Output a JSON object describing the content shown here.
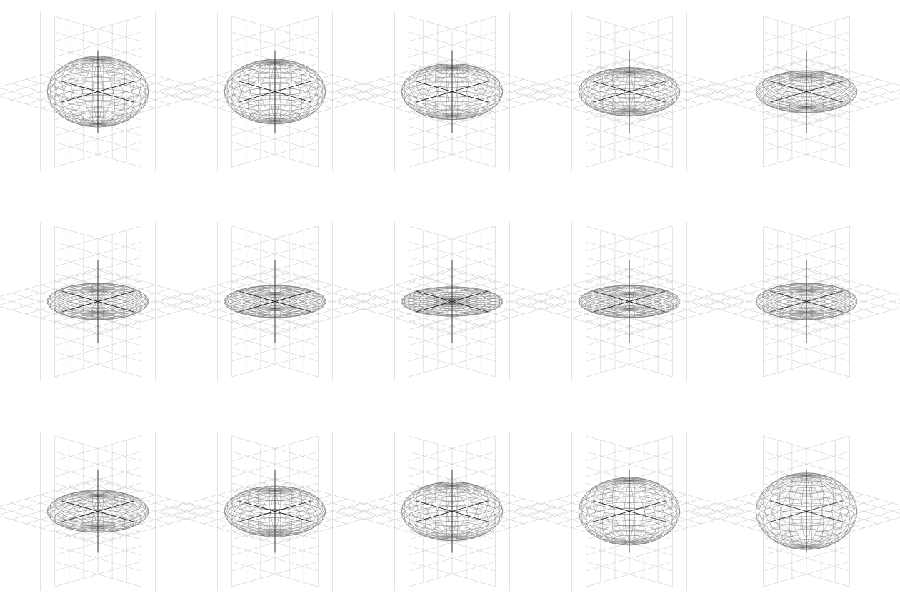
{
  "panels": [
    {
      "row": 1,
      "col": 1,
      "radius_xy": 1.0,
      "radius_z": 0.78
    },
    {
      "row": 1,
      "col": 2,
      "radius_xy": 1.0,
      "radius_z": 0.7
    },
    {
      "row": 1,
      "col": 3,
      "radius_xy": 1.0,
      "radius_z": 0.58
    },
    {
      "row": 1,
      "col": 4,
      "radius_xy": 1.0,
      "radius_z": 0.47
    },
    {
      "row": 1,
      "col": 5,
      "radius_xy": 1.0,
      "radius_z": 0.37
    },
    {
      "row": 2,
      "col": 1,
      "radius_xy": 1.0,
      "radius_z": 0.27
    },
    {
      "row": 2,
      "col": 2,
      "radius_xy": 1.0,
      "radius_z": 0.17
    },
    {
      "row": 2,
      "col": 3,
      "radius_xy": 1.0,
      "radius_z": 0.06
    },
    {
      "row": 2,
      "col": 4,
      "radius_xy": 1.0,
      "radius_z": 0.17
    },
    {
      "row": 2,
      "col": 5,
      "radius_xy": 1.0,
      "radius_z": 0.27
    },
    {
      "row": 3,
      "col": 1,
      "radius_xy": 1.0,
      "radius_z": 0.37
    },
    {
      "row": 3,
      "col": 2,
      "radius_xy": 1.0,
      "radius_z": 0.5
    },
    {
      "row": 3,
      "col": 3,
      "radius_xy": 1.0,
      "radius_z": 0.62
    },
    {
      "row": 3,
      "col": 4,
      "radius_xy": 1.0,
      "radius_z": 0.74
    },
    {
      "row": 3,
      "col": 5,
      "radius_xy": 1.0,
      "radius_z": 0.86
    }
  ],
  "colors": {
    "grid": "#cfcfcf",
    "axis": "#222222",
    "mesh": "#6e6e6e",
    "background": "#ffffff"
  }
}
